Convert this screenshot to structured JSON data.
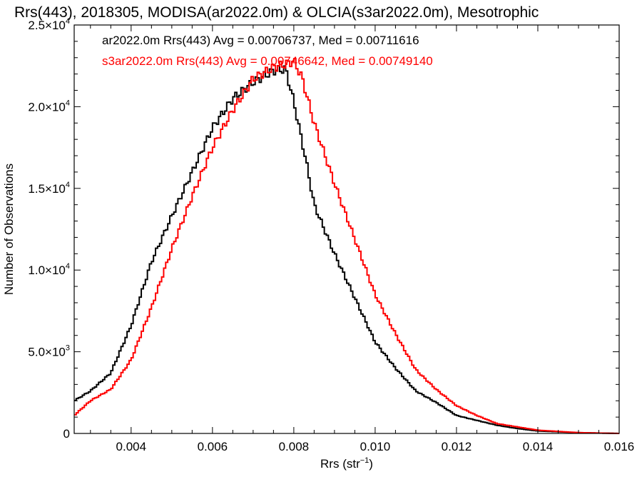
{
  "chart_data": {
    "type": "line",
    "title": "Rrs(443), 2018305, MODISA(ar2022.0m) & OLCIA(s3ar2022.0m), Mesotrophic",
    "xlabel": "Rrs (str",
    "xlabel_sup": "−1",
    "xlabel_end": ")",
    "ylabel": "Number of Observations",
    "xlim": [
      0.0026,
      0.016
    ],
    "ylim": [
      0,
      25000
    ],
    "x_ticks": [
      {
        "value": 0.004,
        "label": "0.004"
      },
      {
        "value": 0.006,
        "label": "0.006"
      },
      {
        "value": 0.008,
        "label": "0.008"
      },
      {
        "value": 0.01,
        "label": "0.010"
      },
      {
        "value": 0.012,
        "label": "0.012"
      },
      {
        "value": 0.014,
        "label": "0.014"
      },
      {
        "value": 0.016,
        "label": "0.016"
      }
    ],
    "y_ticks": [
      {
        "value": 0,
        "mant": "0",
        "exp": ""
      },
      {
        "value": 5000,
        "mant": "5.0×10",
        "exp": "3"
      },
      {
        "value": 10000,
        "mant": "1.0×10",
        "exp": "4"
      },
      {
        "value": 15000,
        "mant": "1.5×10",
        "exp": "4"
      },
      {
        "value": 20000,
        "mant": "2.0×10",
        "exp": "4"
      },
      {
        "value": 25000,
        "mant": "2.5×10",
        "exp": "4"
      }
    ],
    "legend": [
      {
        "text": "ar2022.0m Rrs(443) Avg = 0.00706737, Med = 0.00711616",
        "color": "#000000"
      },
      {
        "text": "s3ar2022.0m Rrs(443) Avg = 0.00746642, Med = 0.00749140",
        "color": "#ff0000"
      }
    ],
    "series": [
      {
        "color": "#000000",
        "x": [
          0.0026,
          0.003,
          0.0035,
          0.004,
          0.0045,
          0.005,
          0.0055,
          0.006,
          0.0065,
          0.007,
          0.0075,
          0.0078,
          0.008,
          0.0083,
          0.0085,
          0.009,
          0.0095,
          0.01,
          0.0105,
          0.011,
          0.0115,
          0.012,
          0.0125,
          0.013,
          0.0135,
          0.014,
          0.015,
          0.016
        ],
        "y": [
          2000,
          2600,
          3700,
          6600,
          10500,
          13300,
          16000,
          18700,
          20500,
          21500,
          22200,
          22300,
          20300,
          16700,
          14000,
          11000,
          8300,
          5600,
          4000,
          2600,
          1900,
          1100,
          800,
          500,
          300,
          150,
          50,
          0
        ]
      },
      {
        "color": "#ff0000",
        "x": [
          0.0026,
          0.003,
          0.0035,
          0.004,
          0.0045,
          0.005,
          0.0055,
          0.006,
          0.0065,
          0.007,
          0.0075,
          0.0078,
          0.008,
          0.0082,
          0.0085,
          0.009,
          0.0095,
          0.01,
          0.0105,
          0.011,
          0.0115,
          0.012,
          0.0125,
          0.013,
          0.0135,
          0.014,
          0.015,
          0.016
        ],
        "y": [
          1100,
          2000,
          2700,
          4500,
          7700,
          11300,
          14500,
          17500,
          19800,
          21700,
          22400,
          22600,
          22800,
          21800,
          19000,
          15300,
          11900,
          8500,
          6100,
          3900,
          2700,
          1700,
          1100,
          600,
          400,
          200,
          50,
          0
        ]
      }
    ]
  }
}
